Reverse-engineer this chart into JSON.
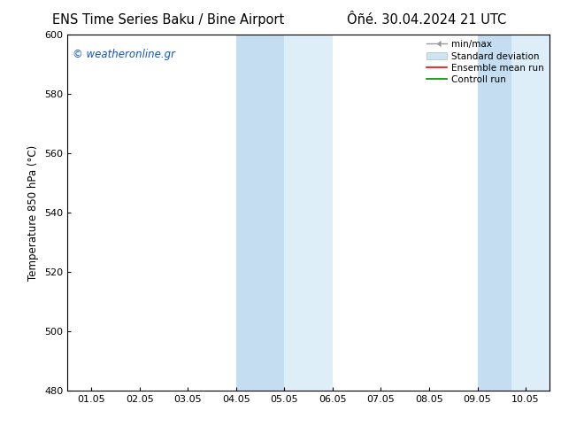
{
  "title_left": "ENS Time Series Baku / Bine Airport",
  "title_right": "Ôñé. 30.04.2024 21 UTC",
  "ylabel": "Temperature 850 hPa (°C)",
  "xlabel_ticks": [
    "01.05",
    "02.05",
    "03.05",
    "04.05",
    "05.05",
    "06.05",
    "07.05",
    "08.05",
    "09.05",
    "10.05"
  ],
  "ylim": [
    480,
    600
  ],
  "yticks": [
    480,
    500,
    520,
    540,
    560,
    580,
    600
  ],
  "band1_outer": [
    3.0,
    5.0
  ],
  "band1_inner": [
    3.0,
    4.0
  ],
  "band2_outer": [
    8.0,
    9.9
  ],
  "band2_inner": [
    8.0,
    8.7
  ],
  "band_outer_color": "#deeef8",
  "band_inner_color": "#c5ddf0",
  "watermark_text": "© weatheronline.gr",
  "watermark_color": "#1155bb",
  "legend_labels": [
    "min/max",
    "Standard deviation",
    "Ensemble mean run",
    "Controll run"
  ],
  "legend_colors_line": [
    "#999999",
    "#bbccdd",
    "#ff0000",
    "#008800"
  ],
  "bg_color": "#ffffff",
  "plot_bg_color": "#ffffff",
  "title_fontsize": 10.5,
  "axis_fontsize": 8.5,
  "tick_fontsize": 8
}
